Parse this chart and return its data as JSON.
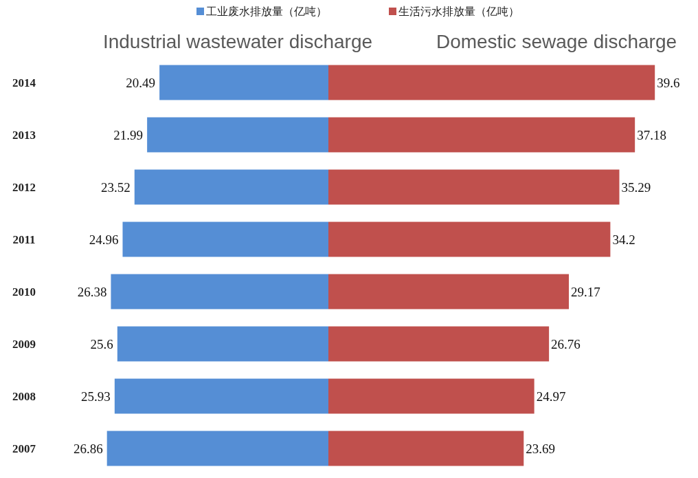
{
  "chart_data": [
    {
      "type": "bar",
      "orientation": "horizontal",
      "title": "Industrial wastewater discharge",
      "categories": [
        "2014",
        "2013",
        "2012",
        "2011",
        "2010",
        "2009",
        "2008",
        "2007"
      ],
      "series": [
        {
          "name": "工业废水排放量（亿吨）",
          "color": "#558ed5",
          "values": [
            20.49,
            21.99,
            23.52,
            24.96,
            26.38,
            25.6,
            25.93,
            26.86
          ]
        }
      ],
      "tick_labels": "y",
      "data_labels": true,
      "legend": "top"
    },
    {
      "type": "bar",
      "orientation": "horizontal",
      "title": "Domestic sewage discharge",
      "categories": [
        "2014",
        "2013",
        "2012",
        "2011",
        "2010",
        "2009",
        "2008",
        "2007"
      ],
      "series": [
        {
          "name": "生活污水排放量（亿吨）",
          "color": "#c0504d",
          "values": [
            39.6,
            37.18,
            35.29,
            34.2,
            29.17,
            26.76,
            24.97,
            23.69
          ]
        }
      ],
      "tick_labels": false,
      "data_labels": true,
      "legend": "top"
    }
  ]
}
